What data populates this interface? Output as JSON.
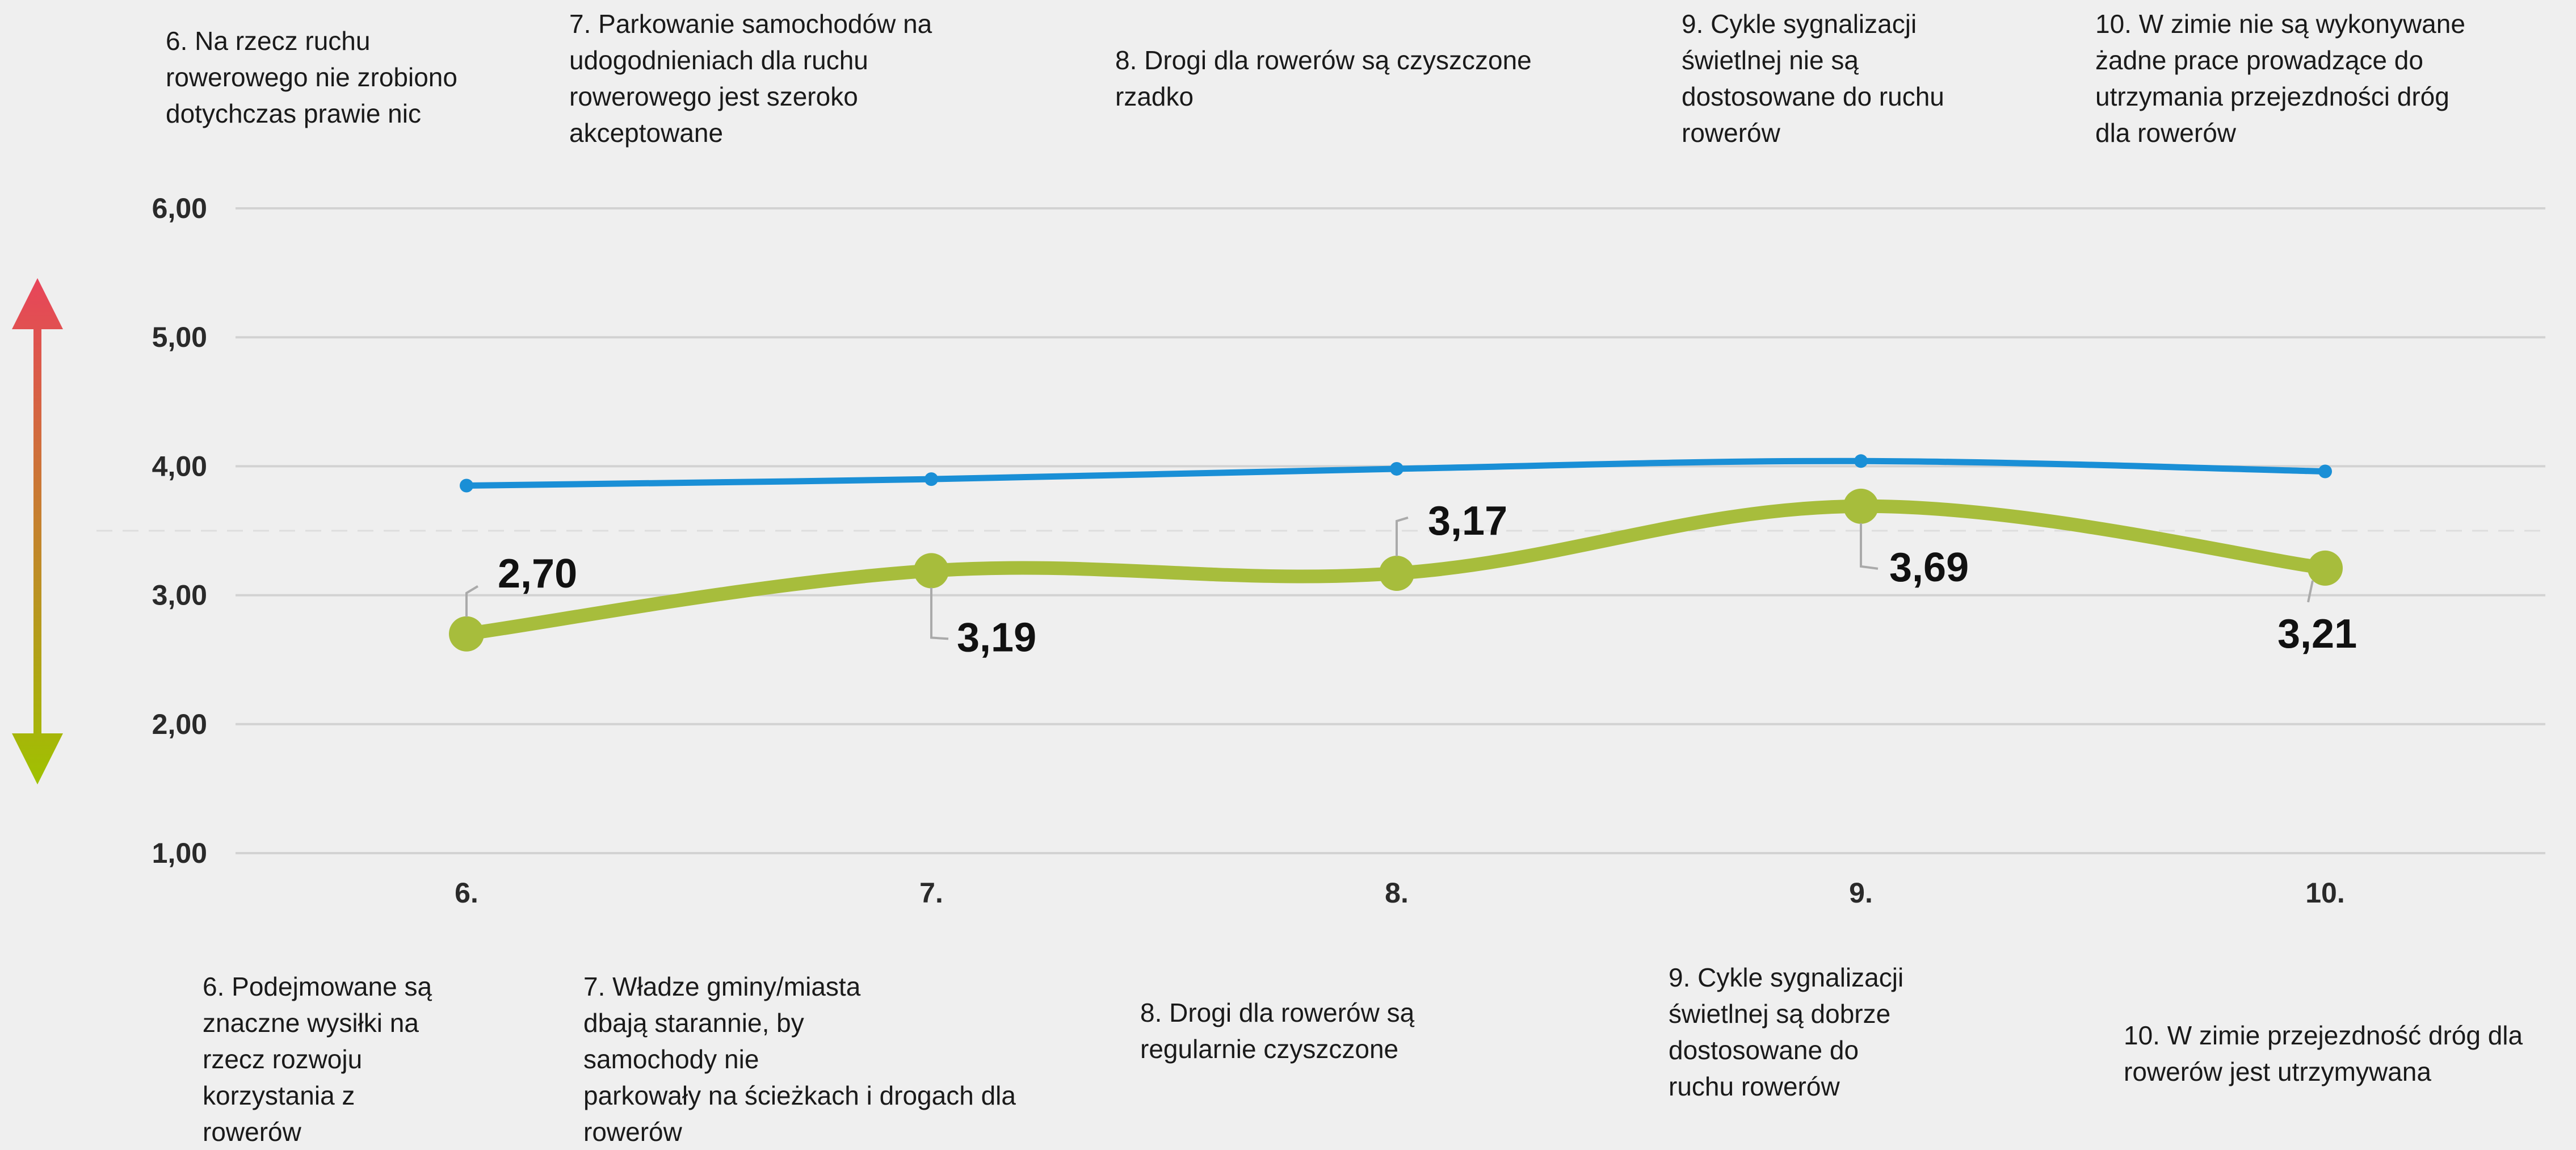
{
  "top_statements": [
    "6. Na rzecz ruchu\nrowerowego nie zrobiono\ndotychczas prawie nic",
    "7. Parkowanie samochodów na\nudogodnieniach dla ruchu\nrowerowego jest szeroko\nakceptowane",
    "8. Drogi dla rowerów są czyszczone\nrzadko",
    "9. Cykle sygnalizacji\nświetlnej nie są\ndostosowane do ruchu\nrowerów",
    "10. W zimie nie są wykonywane\nżadne prace prowadzące do\nutrzymania przejezdności dróg\ndla rowerów"
  ],
  "bottom_statements": [
    "6. Podejmowane są\nznaczne wysiłki na\nrzecz rozwoju\nkorzystania z\nrowerów",
    "7. Władze gminy/miasta\ndbają starannie, by\nsamochody nie\nparkowały na ścieżkach i drogach dla\nrowerów",
    "8. Drogi dla rowerów są\nregularnie czyszczone",
    "9. Cykle sygnalizacji\nświetlnej są dobrze\ndostosowane do\nruchu rowerów",
    "10. W zimie przejezdność dróg dla\nrowerów jest utrzymywana"
  ],
  "colors": {
    "blue_series": "#1a8fd6",
    "green_series": "#a7bd3c",
    "arrow_top": "#e8445a",
    "arrow_bottom": "#9fc200",
    "grid": "#d2d2d2",
    "background": "#efefef"
  },
  "chart_data": {
    "type": "line",
    "categories": [
      "6.",
      "7.",
      "8.",
      "9.",
      "10."
    ],
    "yticks": [
      "1,00",
      "2,00",
      "3,00",
      "4,00",
      "5,00",
      "6,00"
    ],
    "ylim": [
      1,
      6
    ],
    "reference_line": 3.5,
    "grid": true,
    "series": [
      {
        "key": "blue",
        "values": [
          3.85,
          3.9,
          3.98,
          4.04,
          3.96
        ],
        "labels": [
          "",
          "",
          "",
          "",
          ""
        ]
      },
      {
        "key": "green",
        "values": [
          2.7,
          3.19,
          3.17,
          3.69,
          3.21
        ],
        "labels": [
          "2,70",
          "3,19",
          "3,17",
          "3,69",
          "3,21"
        ]
      }
    ]
  }
}
